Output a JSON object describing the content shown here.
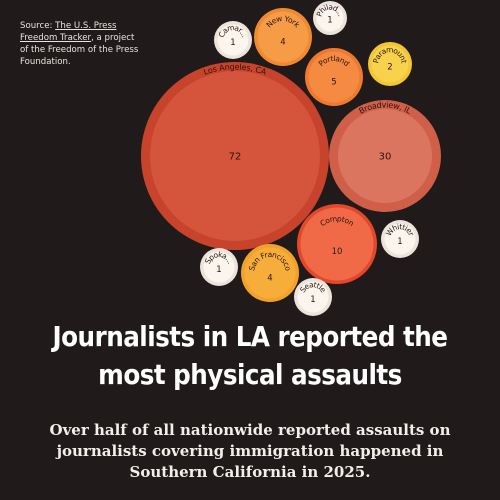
{
  "source": {
    "prefix": "Source: ",
    "link_text": "The U.S. Press Freedom Tracker",
    "suffix": ", a project of the Freedom of the Press Foundation."
  },
  "title": "Journalists in LA reported the most physical assaults",
  "subtitle": "Over half of all nationwide reported assaults on journalists covering immigration happened in Southern California in 2025.",
  "chart_data": {
    "type": "bubble",
    "value_meaning": "number of reported physical assaults",
    "series": [
      {
        "label": "Los Angeles, CA",
        "value": 72,
        "color": "#d4553b",
        "ring": "#c8432b",
        "text": "#2a1512"
      },
      {
        "label": "Broadview, IL",
        "value": 30,
        "color": "#dc7560",
        "ring": "#d05f49",
        "text": "#2a1512"
      },
      {
        "label": "Compton",
        "value": 10,
        "color": "#f06a48",
        "ring": "#e4472c",
        "text": "#2a1512"
      },
      {
        "label": "Portland",
        "value": 5,
        "color": "#f58a42",
        "ring": "#ef7a2e",
        "text": "#2a1512"
      },
      {
        "label": "New York",
        "value": 4,
        "color": "#f69b46",
        "ring": "#f0892f",
        "text": "#2a1512"
      },
      {
        "label": "San Francisco",
        "value": 4,
        "color": "#f7ad3a",
        "ring": "#f2a12a",
        "text": "#2a1512"
      },
      {
        "label": "Paramount",
        "value": 2,
        "color": "#f8d24b",
        "ring": "#f3c634",
        "text": "#2a1512"
      },
      {
        "label": "Camar...",
        "value": 1,
        "color": "#fbf5ee",
        "ring": "#ece4db",
        "text": "#2a1512"
      },
      {
        "label": "Philad...",
        "value": 1,
        "color": "#fbf5ee",
        "ring": "#ece4db",
        "text": "#2a1512"
      },
      {
        "label": "Whittier",
        "value": 1,
        "color": "#fbf5ee",
        "ring": "#ece4db",
        "text": "#2a1512"
      },
      {
        "label": "Spoka...",
        "value": 1,
        "color": "#fbf5ee",
        "ring": "#ece4db",
        "text": "#2a1512"
      },
      {
        "label": "Seattle",
        "value": 1,
        "color": "#fbf5ee",
        "ring": "#ece4db",
        "text": "#2a1512"
      }
    ]
  }
}
